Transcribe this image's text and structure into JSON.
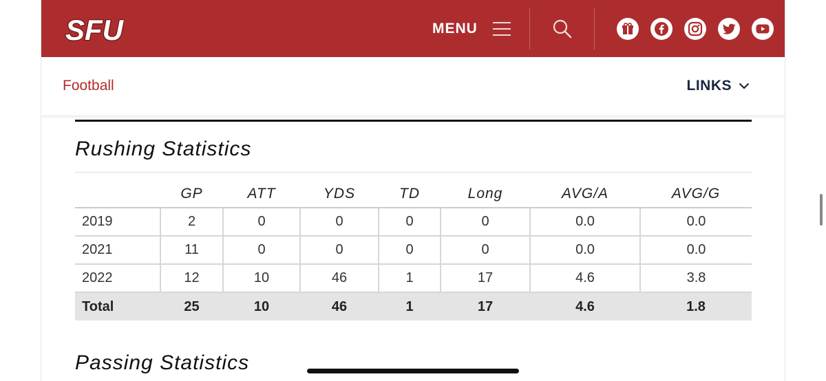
{
  "header": {
    "logo_text": "SFU",
    "menu_label": "MENU",
    "social_icons": [
      "gift-icon",
      "facebook-icon",
      "instagram-icon",
      "twitter-icon",
      "youtube-icon"
    ],
    "brand_color": "#ad2d2e"
  },
  "subnav": {
    "sport": "Football",
    "links_label": "LINKS"
  },
  "rushing": {
    "title": "Rushing Statistics",
    "columns": [
      "",
      "GP",
      "ATT",
      "YDS",
      "TD",
      "Long",
      "AVG/A",
      "AVG/G"
    ],
    "rows": [
      [
        "2019",
        "2",
        "0",
        "0",
        "0",
        "0",
        "0.0",
        "0.0"
      ],
      [
        "2021",
        "11",
        "0",
        "0",
        "0",
        "0",
        "0.0",
        "0.0"
      ],
      [
        "2022",
        "12",
        "10",
        "46",
        "1",
        "17",
        "4.6",
        "3.8"
      ]
    ],
    "total": [
      "Total",
      "25",
      "10",
      "46",
      "1",
      "17",
      "4.6",
      "1.8"
    ]
  },
  "passing": {
    "title": "Passing Statistics"
  }
}
